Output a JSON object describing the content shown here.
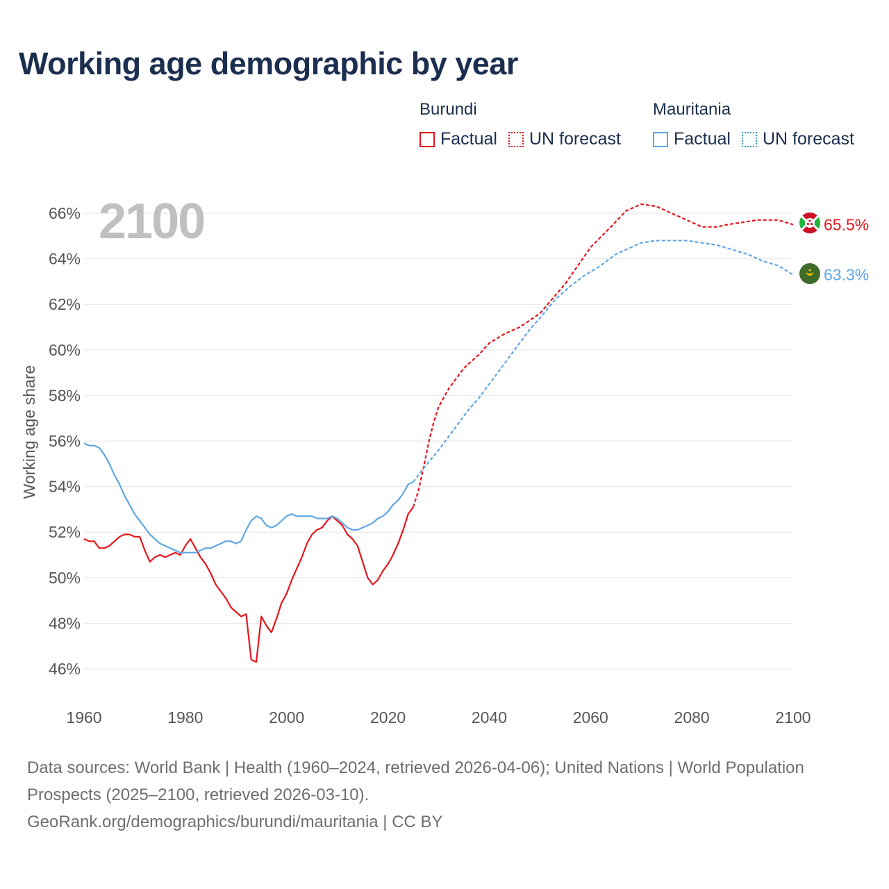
{
  "title": "Working age demographic by year",
  "year_watermark": "2100",
  "legend": {
    "burundi": {
      "name": "Burundi",
      "factual": "Factual",
      "forecast": "UN forecast",
      "color": "#e8141b"
    },
    "mauritania": {
      "name": "Mauritania",
      "factual": "Factual",
      "forecast": "UN forecast",
      "color": "#5fa6e6"
    }
  },
  "footer": {
    "sources": "Data sources: World Bank | Health (1960–2024, retrieved 2026-04-06); United Nations | World Population Prospects (2025–2100, retrieved 2026-03-10).",
    "credit": "GeoRank.org/demographics/burundi/mauritania | CC BY"
  },
  "chart_data": {
    "type": "line",
    "title": "Working age demographic by year",
    "ylabel": "Working age share",
    "xlabel": "",
    "xlim": [
      1960,
      2100
    ],
    "ylim": [
      45,
      67.5
    ],
    "x_ticks": [
      1960,
      1980,
      2000,
      2020,
      2040,
      2060,
      2080,
      2100
    ],
    "x_tick_labels": [
      "1960",
      "1980",
      "2000",
      "2020",
      "2040",
      "2060",
      "2080",
      "2100"
    ],
    "y_ticks": [
      46,
      48,
      50,
      52,
      54,
      56,
      58,
      60,
      62,
      64,
      66
    ],
    "y_tick_labels": [
      "46%",
      "48%",
      "50%",
      "52%",
      "54%",
      "56%",
      "58%",
      "60%",
      "62%",
      "64%",
      "66%"
    ],
    "grid": true,
    "series": [
      {
        "name": "Burundi",
        "kind": "factual",
        "color": "#e8141b",
        "points": [
          [
            1960,
            51.7
          ],
          [
            1961,
            51.6
          ],
          [
            1962,
            51.6
          ],
          [
            1963,
            51.3
          ],
          [
            1964,
            51.3
          ],
          [
            1965,
            51.4
          ],
          [
            1966,
            51.6
          ],
          [
            1967,
            51.8
          ],
          [
            1968,
            51.9
          ],
          [
            1969,
            51.9
          ],
          [
            1970,
            51.8
          ],
          [
            1971,
            51.8
          ],
          [
            1972,
            51.2
          ],
          [
            1973,
            50.7
          ],
          [
            1974,
            50.9
          ],
          [
            1975,
            51.0
          ],
          [
            1976,
            50.9
          ],
          [
            1977,
            51.0
          ],
          [
            1978,
            51.1
          ],
          [
            1979,
            51.0
          ],
          [
            1980,
            51.4
          ],
          [
            1981,
            51.7
          ],
          [
            1982,
            51.3
          ],
          [
            1983,
            50.9
          ],
          [
            1984,
            50.6
          ],
          [
            1985,
            50.2
          ],
          [
            1986,
            49.7
          ],
          [
            1987,
            49.4
          ],
          [
            1988,
            49.1
          ],
          [
            1989,
            48.7
          ],
          [
            1990,
            48.5
          ],
          [
            1991,
            48.3
          ],
          [
            1992,
            48.4
          ],
          [
            1993,
            46.4
          ],
          [
            1994,
            46.3
          ],
          [
            1995,
            48.3
          ],
          [
            1996,
            47.9
          ],
          [
            1997,
            47.6
          ],
          [
            1998,
            48.2
          ],
          [
            1999,
            48.9
          ],
          [
            2000,
            49.3
          ],
          [
            2001,
            49.9
          ],
          [
            2002,
            50.4
          ],
          [
            2003,
            50.9
          ],
          [
            2004,
            51.5
          ],
          [
            2005,
            51.9
          ],
          [
            2006,
            52.1
          ],
          [
            2007,
            52.2
          ],
          [
            2008,
            52.5
          ],
          [
            2009,
            52.7
          ],
          [
            2010,
            52.5
          ],
          [
            2011,
            52.3
          ],
          [
            2012,
            51.9
          ],
          [
            2013,
            51.7
          ],
          [
            2014,
            51.4
          ],
          [
            2015,
            50.7
          ],
          [
            2016,
            50.0
          ],
          [
            2017,
            49.7
          ],
          [
            2018,
            49.9
          ],
          [
            2019,
            50.3
          ],
          [
            2020,
            50.6
          ],
          [
            2021,
            51.0
          ],
          [
            2022,
            51.5
          ],
          [
            2023,
            52.1
          ],
          [
            2024,
            52.8
          ],
          [
            2025,
            53.1
          ]
        ]
      },
      {
        "name": "Burundi",
        "kind": "forecast",
        "color": "#e8141b",
        "points": [
          [
            2025,
            53.1
          ],
          [
            2026,
            53.8
          ],
          [
            2027,
            54.8
          ],
          [
            2028,
            55.9
          ],
          [
            2029,
            56.8
          ],
          [
            2030,
            57.5
          ],
          [
            2032,
            58.3
          ],
          [
            2035,
            59.2
          ],
          [
            2038,
            59.8
          ],
          [
            2040,
            60.3
          ],
          [
            2043,
            60.7
          ],
          [
            2046,
            61.0
          ],
          [
            2050,
            61.6
          ],
          [
            2055,
            62.9
          ],
          [
            2060,
            64.5
          ],
          [
            2064,
            65.4
          ],
          [
            2067,
            66.1
          ],
          [
            2070,
            66.4
          ],
          [
            2073,
            66.3
          ],
          [
            2076,
            66.0
          ],
          [
            2080,
            65.6
          ],
          [
            2082,
            65.4
          ],
          [
            2085,
            65.4
          ],
          [
            2087,
            65.5
          ],
          [
            2090,
            65.6
          ],
          [
            2093,
            65.7
          ],
          [
            2097,
            65.7
          ],
          [
            2100,
            65.5
          ]
        ]
      },
      {
        "name": "Mauritania",
        "kind": "factual",
        "color": "#5fa6e6",
        "points": [
          [
            1960,
            55.9
          ],
          [
            1961,
            55.8
          ],
          [
            1962,
            55.8
          ],
          [
            1963,
            55.7
          ],
          [
            1964,
            55.4
          ],
          [
            1965,
            55.0
          ],
          [
            1966,
            54.5
          ],
          [
            1967,
            54.1
          ],
          [
            1968,
            53.6
          ],
          [
            1969,
            53.2
          ],
          [
            1970,
            52.8
          ],
          [
            1971,
            52.5
          ],
          [
            1972,
            52.2
          ],
          [
            1973,
            51.9
          ],
          [
            1974,
            51.7
          ],
          [
            1975,
            51.5
          ],
          [
            1976,
            51.4
          ],
          [
            1977,
            51.3
          ],
          [
            1978,
            51.2
          ],
          [
            1979,
            51.1
          ],
          [
            1980,
            51.1
          ],
          [
            1981,
            51.1
          ],
          [
            1982,
            51.1
          ],
          [
            1983,
            51.2
          ],
          [
            1984,
            51.3
          ],
          [
            1985,
            51.3
          ],
          [
            1986,
            51.4
          ],
          [
            1987,
            51.5
          ],
          [
            1988,
            51.6
          ],
          [
            1989,
            51.6
          ],
          [
            1990,
            51.5
          ],
          [
            1991,
            51.6
          ],
          [
            1992,
            52.1
          ],
          [
            1993,
            52.5
          ],
          [
            1994,
            52.7
          ],
          [
            1995,
            52.6
          ],
          [
            1996,
            52.3
          ],
          [
            1997,
            52.2
          ],
          [
            1998,
            52.3
          ],
          [
            1999,
            52.5
          ],
          [
            2000,
            52.7
          ],
          [
            2001,
            52.8
          ],
          [
            2002,
            52.7
          ],
          [
            2003,
            52.7
          ],
          [
            2004,
            52.7
          ],
          [
            2005,
            52.7
          ],
          [
            2006,
            52.6
          ],
          [
            2007,
            52.6
          ],
          [
            2008,
            52.6
          ],
          [
            2009,
            52.7
          ],
          [
            2010,
            52.6
          ],
          [
            2011,
            52.4
          ],
          [
            2012,
            52.2
          ],
          [
            2013,
            52.1
          ],
          [
            2014,
            52.1
          ],
          [
            2015,
            52.2
          ],
          [
            2016,
            52.3
          ],
          [
            2017,
            52.4
          ],
          [
            2018,
            52.6
          ],
          [
            2019,
            52.7
          ],
          [
            2020,
            52.9
          ],
          [
            2021,
            53.2
          ],
          [
            2022,
            53.4
          ],
          [
            2023,
            53.7
          ],
          [
            2024,
            54.1
          ],
          [
            2025,
            54.2
          ]
        ]
      },
      {
        "name": "Mauritania",
        "kind": "forecast",
        "color": "#5fa6e6",
        "points": [
          [
            2025,
            54.2
          ],
          [
            2027,
            54.8
          ],
          [
            2030,
            55.6
          ],
          [
            2033,
            56.5
          ],
          [
            2036,
            57.4
          ],
          [
            2038,
            57.9
          ],
          [
            2040,
            58.5
          ],
          [
            2043,
            59.4
          ],
          [
            2046,
            60.3
          ],
          [
            2048,
            60.9
          ],
          [
            2050,
            61.4
          ],
          [
            2053,
            62.2
          ],
          [
            2056,
            62.8
          ],
          [
            2059,
            63.3
          ],
          [
            2062,
            63.7
          ],
          [
            2065,
            64.2
          ],
          [
            2068,
            64.5
          ],
          [
            2070,
            64.7
          ],
          [
            2073,
            64.8
          ],
          [
            2076,
            64.8
          ],
          [
            2079,
            64.8
          ],
          [
            2082,
            64.7
          ],
          [
            2085,
            64.6
          ],
          [
            2088,
            64.4
          ],
          [
            2091,
            64.2
          ],
          [
            2094,
            63.9
          ],
          [
            2097,
            63.7
          ],
          [
            2100,
            63.3
          ]
        ]
      }
    ],
    "end_labels": [
      {
        "series": "Burundi",
        "year": 2100,
        "value": 65.5,
        "text": "65.5%",
        "color": "#e8141b"
      },
      {
        "series": "Mauritania",
        "year": 2100,
        "value": 63.3,
        "text": "63.3%",
        "color": "#5fa6e6"
      }
    ]
  }
}
